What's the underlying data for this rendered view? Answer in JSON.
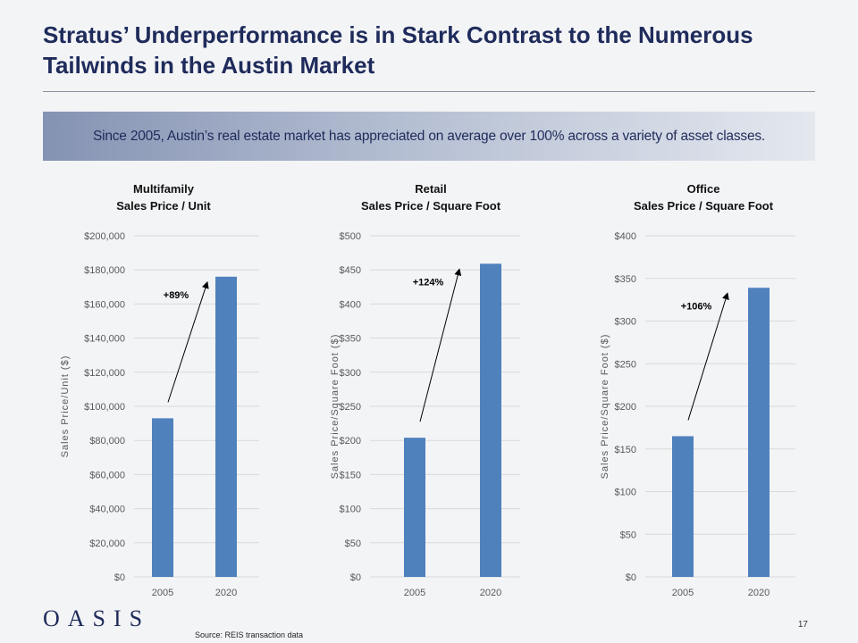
{
  "slide": {
    "title_line1": "Stratus’ Underperformance is in Stark Contrast to the Numerous",
    "title_line2": "Tailwinds in the Austin Market",
    "banner": "Since 2005, Austin’s real estate market has appreciated on average over 100% across a variety of asset classes.",
    "logo": "OASIS",
    "source": "Source: REIS transaction data",
    "page_number": "17"
  },
  "colors": {
    "bar": "#4f81bd",
    "title": "#1f2b5b"
  },
  "chart_data": [
    {
      "type": "bar",
      "title": "Multifamily",
      "subtitle": "Sales Price / Unit",
      "categories": [
        "2005",
        "2020"
      ],
      "values": [
        93000,
        176000
      ],
      "ylabel": "Sales Price/Unit ($)",
      "ylim": [
        0,
        200000
      ],
      "yticks": [
        0,
        20000,
        40000,
        60000,
        80000,
        100000,
        120000,
        140000,
        160000,
        180000,
        200000
      ],
      "ytick_labels": [
        "$0",
        "$20,000",
        "$40,000",
        "$60,000",
        "$80,000",
        "$100,000",
        "$120,000",
        "$140,000",
        "$160,000",
        "$180,000",
        "$200,000"
      ],
      "annotation": "+89%",
      "grid": true
    },
    {
      "type": "bar",
      "title": "Retail",
      "subtitle": "Sales Price / Square Foot",
      "categories": [
        "2005",
        "2020"
      ],
      "values": [
        204,
        459
      ],
      "ylabel": "Sales Price/Square Foot ($)",
      "ylim": [
        0,
        500
      ],
      "yticks": [
        0,
        50,
        100,
        150,
        200,
        250,
        300,
        350,
        400,
        450,
        500
      ],
      "ytick_labels": [
        "$0",
        "$50",
        "$100",
        "$150",
        "$200",
        "$250",
        "$300",
        "$350",
        "$400",
        "$450",
        "$500"
      ],
      "annotation": "+124%",
      "grid": true
    },
    {
      "type": "bar",
      "title": "Office",
      "subtitle": "Sales Price / Square Foot",
      "categories": [
        "2005",
        "2020"
      ],
      "values": [
        165,
        339
      ],
      "ylabel": "Sales Price/Square Foot ($)",
      "ylim": [
        0,
        400
      ],
      "yticks": [
        0,
        50,
        100,
        150,
        200,
        250,
        300,
        350,
        400
      ],
      "ytick_labels": [
        "$0",
        "$50",
        "$100",
        "$150",
        "$200",
        "$250",
        "$300",
        "$350",
        "$400"
      ],
      "annotation": "+106%",
      "grid": true
    }
  ]
}
